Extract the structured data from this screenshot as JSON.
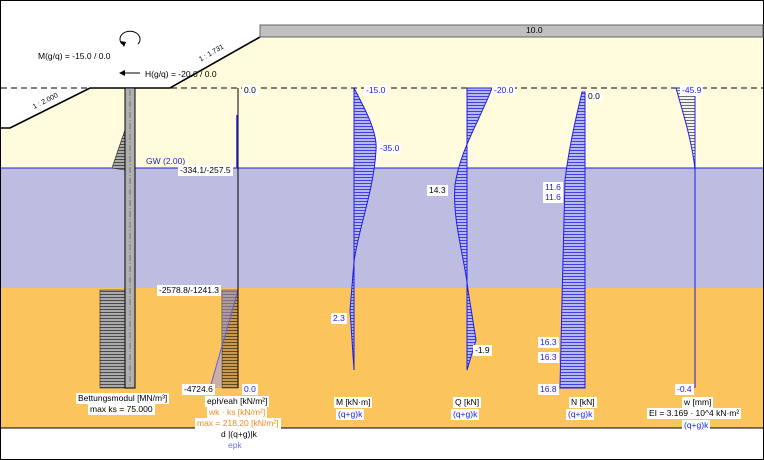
{
  "surcharge": {
    "value": "10.0"
  },
  "loads": {
    "moment": "M(g/q) = -15.0 / 0.0",
    "horizontal": "H(g/q) = -20.0 / 0.0"
  },
  "slopes": {
    "left": "1 : 2.000",
    "right": "1 : 1.731"
  },
  "groundwater": {
    "label": "GW (2.00)"
  },
  "colors": {
    "upper_layer": "#fffbdc",
    "middle_layer": "#bdbde2",
    "lower_layer": "#fcc45c",
    "diagram": "#2020e0",
    "surcharge": "#c0c0c0"
  },
  "bedding": {
    "title": "Bettungsmodul [MN/m³]",
    "max": "max ks = 75.000"
  },
  "earth_pressure": {
    "top": "0.0",
    "gw": "-334.1/-257.5",
    "layer": "-2578.8/-1241.3",
    "bottom_left": "-4724.6",
    "bottom_right": "0.0",
    "title": "eph/eah [kN/m²]",
    "legend1": "wk · ks [kN/m²]",
    "legend2": "max = 218.20 [kN/m²]",
    "legend3": "d |(q+g)|k",
    "legend4": "epk"
  },
  "moment": {
    "top": "-15.0",
    "max": "-35.0",
    "lower": "2.3",
    "title": "M [kN·m]",
    "case": "(q+g)k"
  },
  "shear": {
    "top": "-20.0",
    "mid": "14.3",
    "lower": "-1.9",
    "title": "Q [kN]",
    "case": "(q+g)k"
  },
  "normal": {
    "top": "0.0",
    "v1": "11.6",
    "v2": "11.6",
    "v3": "16.3",
    "v4": "16.3",
    "bottom": "16.8",
    "title": "N [kN]",
    "case": "(q+g)k"
  },
  "deflection": {
    "top": "-45.9",
    "bottom": "-0.4",
    "title": "w [mm]",
    "stiffness": "EI = 3.169 · 10^4 kN·m²",
    "case": "(q+g)k"
  }
}
